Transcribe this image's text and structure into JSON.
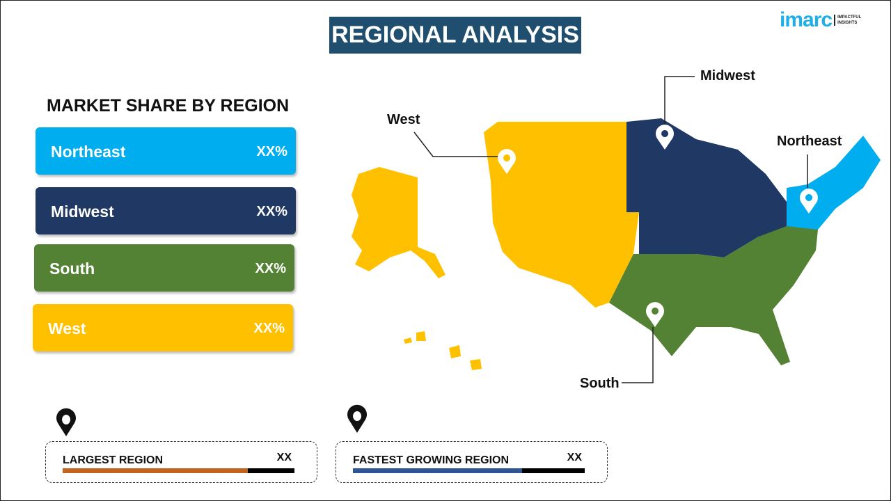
{
  "title": "REGIONAL ANALYSIS",
  "logo": {
    "brand": "imarc",
    "tagline_1": "IMPACTFUL",
    "tagline_2": "INSIGHTS"
  },
  "subtitle": "MARKET SHARE BY REGION",
  "regions": [
    {
      "name": "Northeast",
      "value": "XX%",
      "color": "#00aeef"
    },
    {
      "name": "Midwest",
      "value": "XX%",
      "color": "#1f3864"
    },
    {
      "name": "South",
      "value": "XX%",
      "color": "#548235"
    },
    {
      "name": "West",
      "value": "XX%",
      "color": "#ffc000"
    }
  ],
  "map_labels": {
    "west": "West",
    "midwest": "Midwest",
    "northeast": "Northeast",
    "south": "South"
  },
  "cards": [
    {
      "label": "LARGEST REGION",
      "value": "XX",
      "fill_percent": 80,
      "color": "#c0651f"
    },
    {
      "label": "FASTEST  GROWING REGION",
      "value": "XX",
      "fill_percent": 73,
      "color": "#2f5597"
    }
  ]
}
